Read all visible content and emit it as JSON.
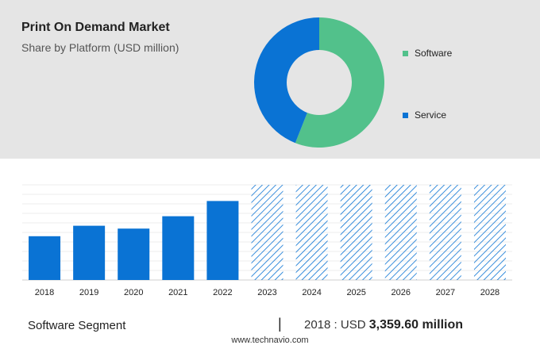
{
  "header": {
    "title": "Print On Demand Market",
    "subtitle": "Share by Platform (USD million)"
  },
  "colors": {
    "software": "#52c18b",
    "service": "#0a73d4",
    "bar": "#0a73d4",
    "forecast_hatch": "#0a73d4",
    "panel": "#e5e5e5"
  },
  "chart_data": [
    {
      "type": "pie",
      "donut": true,
      "labels": [
        "Software",
        "Service"
      ],
      "values": [
        56,
        44
      ],
      "legend": "right"
    },
    {
      "type": "bar",
      "categories": [
        "2018",
        "2019",
        "2020",
        "2021",
        "2022",
        "2023",
        "2024",
        "2025",
        "2026",
        "2027",
        "2028"
      ],
      "values": [
        0.46,
        0.57,
        0.54,
        0.67,
        0.83,
        1.0,
        1.0,
        1.0,
        1.0,
        1.0,
        1.0
      ],
      "forecast": [
        false,
        false,
        false,
        false,
        false,
        true,
        true,
        true,
        true,
        true,
        true
      ],
      "grid": true
    }
  ],
  "footer": {
    "segment": "Software Segment",
    "separator": "|",
    "year_prefix": "2018 : USD",
    "value": "3,359.60 million",
    "source": "www.technavio.com"
  }
}
